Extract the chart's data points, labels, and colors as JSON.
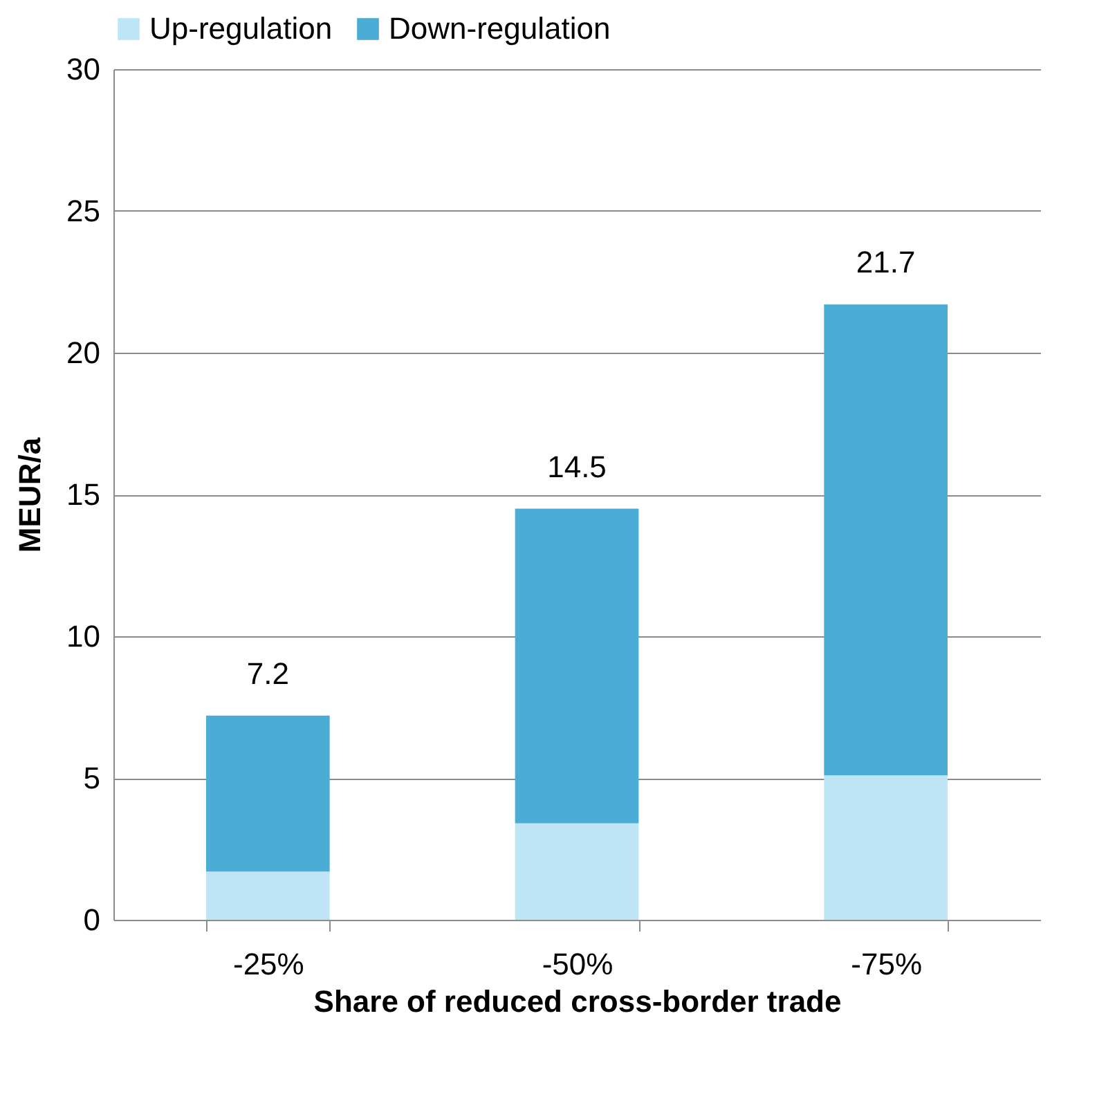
{
  "chart_data": {
    "type": "bar",
    "stacked": true,
    "xlabel": "Share of reduced cross-border trade",
    "ylabel": "MEUR/a",
    "categories": [
      "-25%",
      "-50%",
      "-75%"
    ],
    "series": [
      {
        "name": "Up-regulation",
        "color": "#bde5f6",
        "values": [
          1.7,
          3.4,
          5.1
        ]
      },
      {
        "name": "Down-regulation",
        "color": "#4badd6",
        "values": [
          5.5,
          11.1,
          16.6
        ]
      }
    ],
    "totals": [
      "7.2",
      "14.5",
      "21.7"
    ],
    "ylim": [
      0,
      30
    ],
    "yticks": [
      0,
      5,
      10,
      15,
      20,
      25,
      30
    ],
    "grid": "y",
    "legend": "top"
  }
}
